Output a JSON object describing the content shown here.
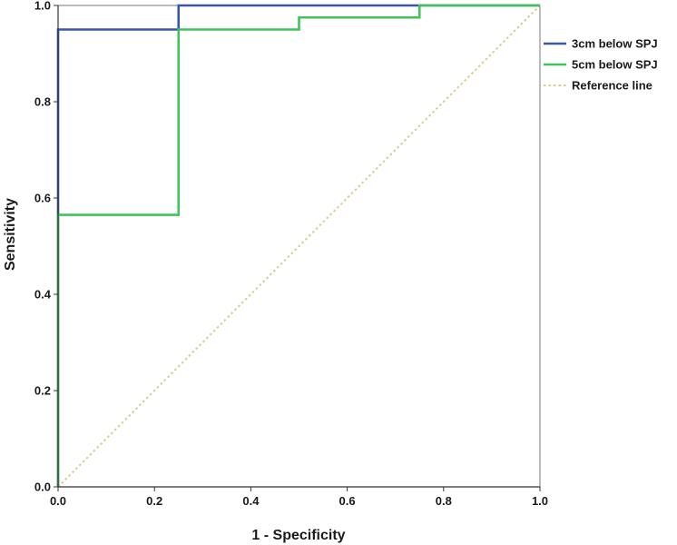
{
  "chart_data": {
    "type": "line",
    "xlabel": "1 - Specificity",
    "ylabel": "Sensitivity",
    "xlim": [
      0,
      1
    ],
    "ylim": [
      0,
      1
    ],
    "xticks": [
      "0.0",
      "0.2",
      "0.4",
      "0.6",
      "0.8",
      "1.0"
    ],
    "yticks": [
      "0.0",
      "0.2",
      "0.4",
      "0.6",
      "0.8",
      "1.0"
    ],
    "grid": false,
    "legend_position": "right",
    "series": [
      {
        "name": "3cm below SPJ",
        "color": "#3a57a7",
        "style": "solid",
        "x": [
          0,
          0,
          0.25,
          0.25,
          1
        ],
        "y": [
          0,
          0.95,
          0.95,
          1.0,
          1.0
        ]
      },
      {
        "name": "5cm below SPJ",
        "color": "#3fc35a",
        "style": "solid",
        "x": [
          0,
          0,
          0.25,
          0.25,
          0.5,
          0.5,
          0.75,
          0.75,
          1
        ],
        "y": [
          0,
          0.565,
          0.565,
          0.95,
          0.95,
          0.975,
          0.975,
          1.0,
          1.0
        ]
      },
      {
        "name": "Reference line",
        "color": "#d9cc8c",
        "style": "dotted",
        "x": [
          0,
          1
        ],
        "y": [
          0,
          1
        ]
      }
    ]
  }
}
